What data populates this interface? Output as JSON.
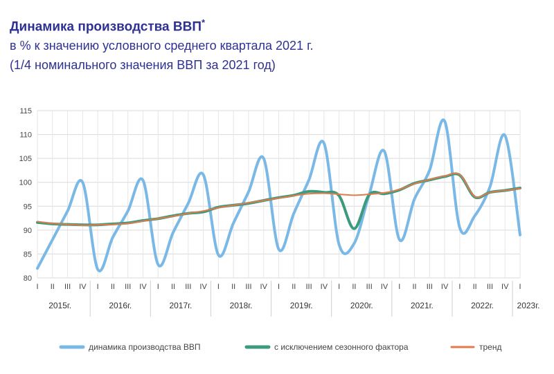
{
  "header": {
    "title": "Динамика производства ВВП",
    "title_mark": "*",
    "subtitle1": "в % к значению условного среднего квартала 2021 г.",
    "subtitle2": "(1/4 номинального значения ВВП за 2021 год)"
  },
  "chart_data": {
    "type": "line",
    "title": "Динамика производства ВВП*",
    "ylim": [
      80,
      115
    ],
    "yticks": [
      80,
      85,
      90,
      95,
      100,
      105,
      110,
      115
    ],
    "quarters": [
      "I",
      "II",
      "III",
      "IV",
      "I",
      "II",
      "III",
      "IV",
      "I",
      "II",
      "III",
      "IV",
      "I",
      "II",
      "III",
      "IV",
      "I",
      "II",
      "III",
      "IV",
      "I",
      "II",
      "III",
      "IV",
      "I",
      "II",
      "III",
      "IV",
      "I",
      "II",
      "III",
      "IV",
      "I"
    ],
    "years": [
      "2015г.",
      "2016г.",
      "2017г.",
      "2018г.",
      "2019г.",
      "2020г.",
      "2021г.",
      "2022г.",
      "2023г."
    ],
    "grid": true,
    "legend_position": "bottom",
    "series": [
      {
        "name": "динамика производства ВВП",
        "color": "#7ab8e6",
        "values": [
          82.0,
          88.0,
          94.0,
          100.0,
          81.8,
          88.5,
          94.0,
          100.4,
          82.8,
          89.5,
          95.6,
          101.6,
          84.8,
          91.5,
          98.0,
          105.0,
          86.0,
          93.5,
          100.5,
          108.2,
          87.0,
          87.2,
          97.5,
          106.5,
          88.0,
          96.5,
          102.5,
          112.8,
          90.5,
          93.0,
          99.0,
          109.8,
          89.0
        ]
      },
      {
        "name": "с исключением сезонного фактора",
        "color": "#3c9a7e",
        "values": [
          91.6,
          91.3,
          91.2,
          91.1,
          91.1,
          91.3,
          91.5,
          92.0,
          92.4,
          93.0,
          93.5,
          93.8,
          94.8,
          95.2,
          95.6,
          96.2,
          96.8,
          97.3,
          98.1,
          97.9,
          97.2,
          90.3,
          97.4,
          97.6,
          98.4,
          99.8,
          100.5,
          101.2,
          101.5,
          96.9,
          97.9,
          98.3,
          98.8
        ]
      },
      {
        "name": "тренд",
        "color": "#e07a4a",
        "values": [
          91.8,
          91.4,
          91.2,
          91.0,
          91.1,
          91.2,
          91.4,
          91.9,
          92.4,
          92.9,
          93.5,
          94.0,
          94.7,
          95.2,
          95.7,
          96.2,
          96.7,
          97.2,
          97.6,
          97.7,
          97.5,
          97.3,
          97.5,
          97.8,
          98.5,
          99.7,
          100.6,
          101.3,
          101.6,
          97.0,
          97.9,
          98.3,
          98.7
        ]
      }
    ]
  }
}
